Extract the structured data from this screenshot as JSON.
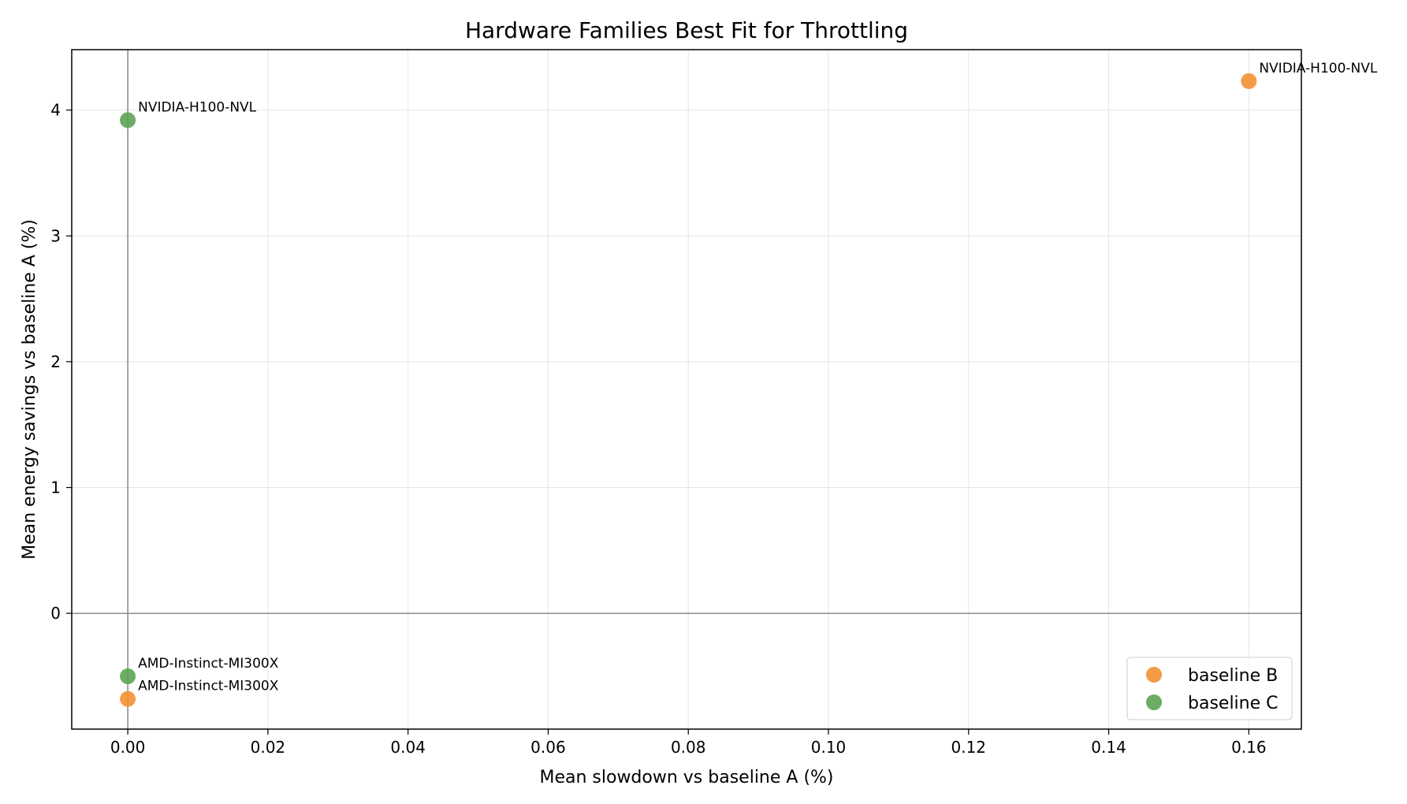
{
  "chart_data": {
    "type": "scatter",
    "title": "Hardware Families Best Fit for Throttling",
    "xlabel": "Mean slowdown vs baseline A (%)",
    "ylabel": "Mean energy savings vs baseline A (%)",
    "xlim": [
      -0.008,
      0.1675
    ],
    "ylim": [
      -0.92,
      4.48
    ],
    "xticks": [
      "0.00",
      "0.02",
      "0.04",
      "0.06",
      "0.08",
      "0.10",
      "0.12",
      "0.14",
      "0.16"
    ],
    "xtick_values": [
      0,
      0.02,
      0.04,
      0.06,
      0.08,
      0.1,
      0.12,
      0.14,
      0.16
    ],
    "yticks": [
      "0",
      "1",
      "2",
      "3",
      "4"
    ],
    "ytick_values": [
      0,
      1,
      2,
      3,
      4
    ],
    "grid": true,
    "reference_lines": {
      "x": 0,
      "y": 0
    },
    "legend_position": "lower-right",
    "series": [
      {
        "name": "baseline B",
        "color": "#f28e2b",
        "points": [
          {
            "x": 0.16,
            "y": 4.23,
            "label": "NVIDIA-H100-NVL"
          },
          {
            "x": 0.0,
            "y": -0.68,
            "label": "AMD-Instinct-MI300X"
          }
        ]
      },
      {
        "name": "baseline C",
        "color": "#59a14f",
        "points": [
          {
            "x": 0.0,
            "y": 3.92,
            "label": "NVIDIA-H100-NVL"
          },
          {
            "x": 0.0,
            "y": -0.5,
            "label": "AMD-Instinct-MI300X"
          }
        ]
      }
    ]
  }
}
